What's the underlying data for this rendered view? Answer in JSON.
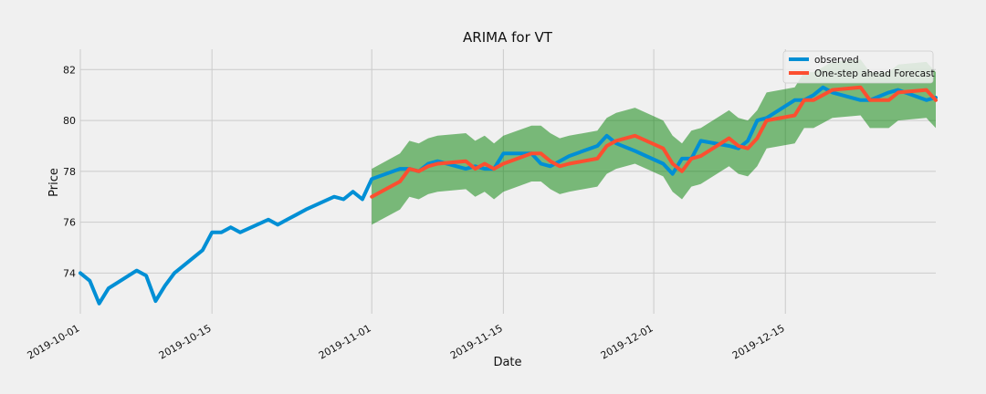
{
  "chart_data": {
    "type": "line",
    "title": "ARIMA for VT",
    "xlabel": "Date",
    "ylabel": "Price",
    "xlim": [
      "2019-10-01",
      "2019-12-31"
    ],
    "ylim": [
      72.4,
      82.8
    ],
    "xticks": [
      "2019-10-01",
      "2019-10-15",
      "2019-11-01",
      "2019-11-15",
      "2019-12-01",
      "2019-12-15"
    ],
    "yticks": [
      74,
      76,
      78,
      80,
      82
    ],
    "grid": true,
    "legend_position": "top-right",
    "colors": {
      "observed": "#008fd5",
      "forecast": "#fc4f30",
      "band": "#008000",
      "background": "#f0f0f0",
      "grid": "#cbcbcb"
    },
    "series": [
      {
        "name": "observed",
        "x": [
          "2019-10-01",
          "2019-10-02",
          "2019-10-03",
          "2019-10-04",
          "2019-10-07",
          "2019-10-08",
          "2019-10-09",
          "2019-10-10",
          "2019-10-11",
          "2019-10-14",
          "2019-10-15",
          "2019-10-16",
          "2019-10-17",
          "2019-10-18",
          "2019-10-21",
          "2019-10-22",
          "2019-10-23",
          "2019-10-24",
          "2019-10-25",
          "2019-10-28",
          "2019-10-29",
          "2019-10-30",
          "2019-10-31",
          "2019-11-01",
          "2019-11-04",
          "2019-11-05",
          "2019-11-06",
          "2019-11-07",
          "2019-11-08",
          "2019-11-11",
          "2019-11-12",
          "2019-11-13",
          "2019-11-14",
          "2019-11-15",
          "2019-11-18",
          "2019-11-19",
          "2019-11-20",
          "2019-11-21",
          "2019-11-22",
          "2019-11-25",
          "2019-11-26",
          "2019-11-27",
          "2019-11-29",
          "2019-12-02",
          "2019-12-03",
          "2019-12-04",
          "2019-12-05",
          "2019-12-06",
          "2019-12-09",
          "2019-12-10",
          "2019-12-11",
          "2019-12-12",
          "2019-12-13",
          "2019-12-16",
          "2019-12-17",
          "2019-12-18",
          "2019-12-19",
          "2019-12-20",
          "2019-12-23",
          "2019-12-24",
          "2019-12-26",
          "2019-12-27",
          "2019-12-30",
          "2019-12-31"
        ],
        "y": [
          74.0,
          73.7,
          72.8,
          73.4,
          74.1,
          73.9,
          72.9,
          73.5,
          74.0,
          74.9,
          75.6,
          75.6,
          75.8,
          75.6,
          76.1,
          75.9,
          76.1,
          76.3,
          76.5,
          77.0,
          76.9,
          77.2,
          76.9,
          77.7,
          78.1,
          78.1,
          78.0,
          78.3,
          78.4,
          78.1,
          78.2,
          78.1,
          78.1,
          78.7,
          78.7,
          78.3,
          78.2,
          78.4,
          78.6,
          79.0,
          79.4,
          79.1,
          78.8,
          78.3,
          77.9,
          78.5,
          78.5,
          79.2,
          79.0,
          78.9,
          79.2,
          80.0,
          80.1,
          80.8,
          80.8,
          81.0,
          81.3,
          81.1,
          80.8,
          80.8,
          81.1,
          81.2,
          80.8,
          80.9
        ]
      },
      {
        "name": "One-step ahead Forecast",
        "x": [
          "2019-11-01",
          "2019-11-04",
          "2019-11-05",
          "2019-11-06",
          "2019-11-07",
          "2019-11-08",
          "2019-11-11",
          "2019-11-12",
          "2019-11-13",
          "2019-11-14",
          "2019-11-15",
          "2019-11-18",
          "2019-11-19",
          "2019-11-20",
          "2019-11-21",
          "2019-11-22",
          "2019-11-25",
          "2019-11-26",
          "2019-11-27",
          "2019-11-29",
          "2019-12-02",
          "2019-12-03",
          "2019-12-04",
          "2019-12-05",
          "2019-12-06",
          "2019-12-09",
          "2019-12-10",
          "2019-12-11",
          "2019-12-12",
          "2019-12-13",
          "2019-12-16",
          "2019-12-17",
          "2019-12-18",
          "2019-12-19",
          "2019-12-20",
          "2019-12-23",
          "2019-12-24",
          "2019-12-26",
          "2019-12-27",
          "2019-12-30",
          "2019-12-31"
        ],
        "y": [
          77.0,
          77.6,
          78.1,
          78.0,
          78.2,
          78.3,
          78.4,
          78.1,
          78.3,
          78.1,
          78.3,
          78.7,
          78.7,
          78.4,
          78.2,
          78.3,
          78.5,
          79.0,
          79.2,
          79.4,
          78.9,
          78.3,
          78.0,
          78.5,
          78.6,
          79.3,
          79.0,
          78.9,
          79.3,
          80.0,
          80.2,
          80.8,
          80.8,
          81.0,
          81.2,
          81.3,
          80.8,
          80.8,
          81.1,
          81.2,
          80.8
        ]
      }
    ],
    "confidence_band": {
      "x": [
        "2019-11-01",
        "2019-11-04",
        "2019-11-05",
        "2019-11-06",
        "2019-11-07",
        "2019-11-08",
        "2019-11-11",
        "2019-11-12",
        "2019-11-13",
        "2019-11-14",
        "2019-11-15",
        "2019-11-18",
        "2019-11-19",
        "2019-11-20",
        "2019-11-21",
        "2019-11-22",
        "2019-11-25",
        "2019-11-26",
        "2019-11-27",
        "2019-11-29",
        "2019-12-02",
        "2019-12-03",
        "2019-12-04",
        "2019-12-05",
        "2019-12-06",
        "2019-12-09",
        "2019-12-10",
        "2019-12-11",
        "2019-12-12",
        "2019-12-13",
        "2019-12-16",
        "2019-12-17",
        "2019-12-18",
        "2019-12-19",
        "2019-12-20",
        "2019-12-23",
        "2019-12-24",
        "2019-12-26",
        "2019-12-27",
        "2019-12-30",
        "2019-12-31"
      ],
      "lower": [
        75.9,
        76.5,
        77.0,
        76.9,
        77.1,
        77.2,
        77.3,
        77.0,
        77.2,
        76.9,
        77.2,
        77.6,
        77.6,
        77.3,
        77.1,
        77.2,
        77.4,
        77.9,
        78.1,
        78.3,
        77.8,
        77.2,
        76.9,
        77.4,
        77.5,
        78.2,
        77.9,
        77.8,
        78.2,
        78.9,
        79.1,
        79.7,
        79.7,
        79.9,
        80.1,
        80.2,
        79.7,
        79.7,
        80.0,
        80.1,
        79.7
      ],
      "upper": [
        78.1,
        78.7,
        79.2,
        79.1,
        79.3,
        79.4,
        79.5,
        79.2,
        79.4,
        79.1,
        79.4,
        79.8,
        79.8,
        79.5,
        79.3,
        79.4,
        79.6,
        80.1,
        80.3,
        80.5,
        80.0,
        79.4,
        79.1,
        79.6,
        79.7,
        80.4,
        80.1,
        80.0,
        80.4,
        81.1,
        81.3,
        81.9,
        81.9,
        82.1,
        82.3,
        82.4,
        81.9,
        81.9,
        82.2,
        82.3,
        81.9
      ]
    }
  }
}
